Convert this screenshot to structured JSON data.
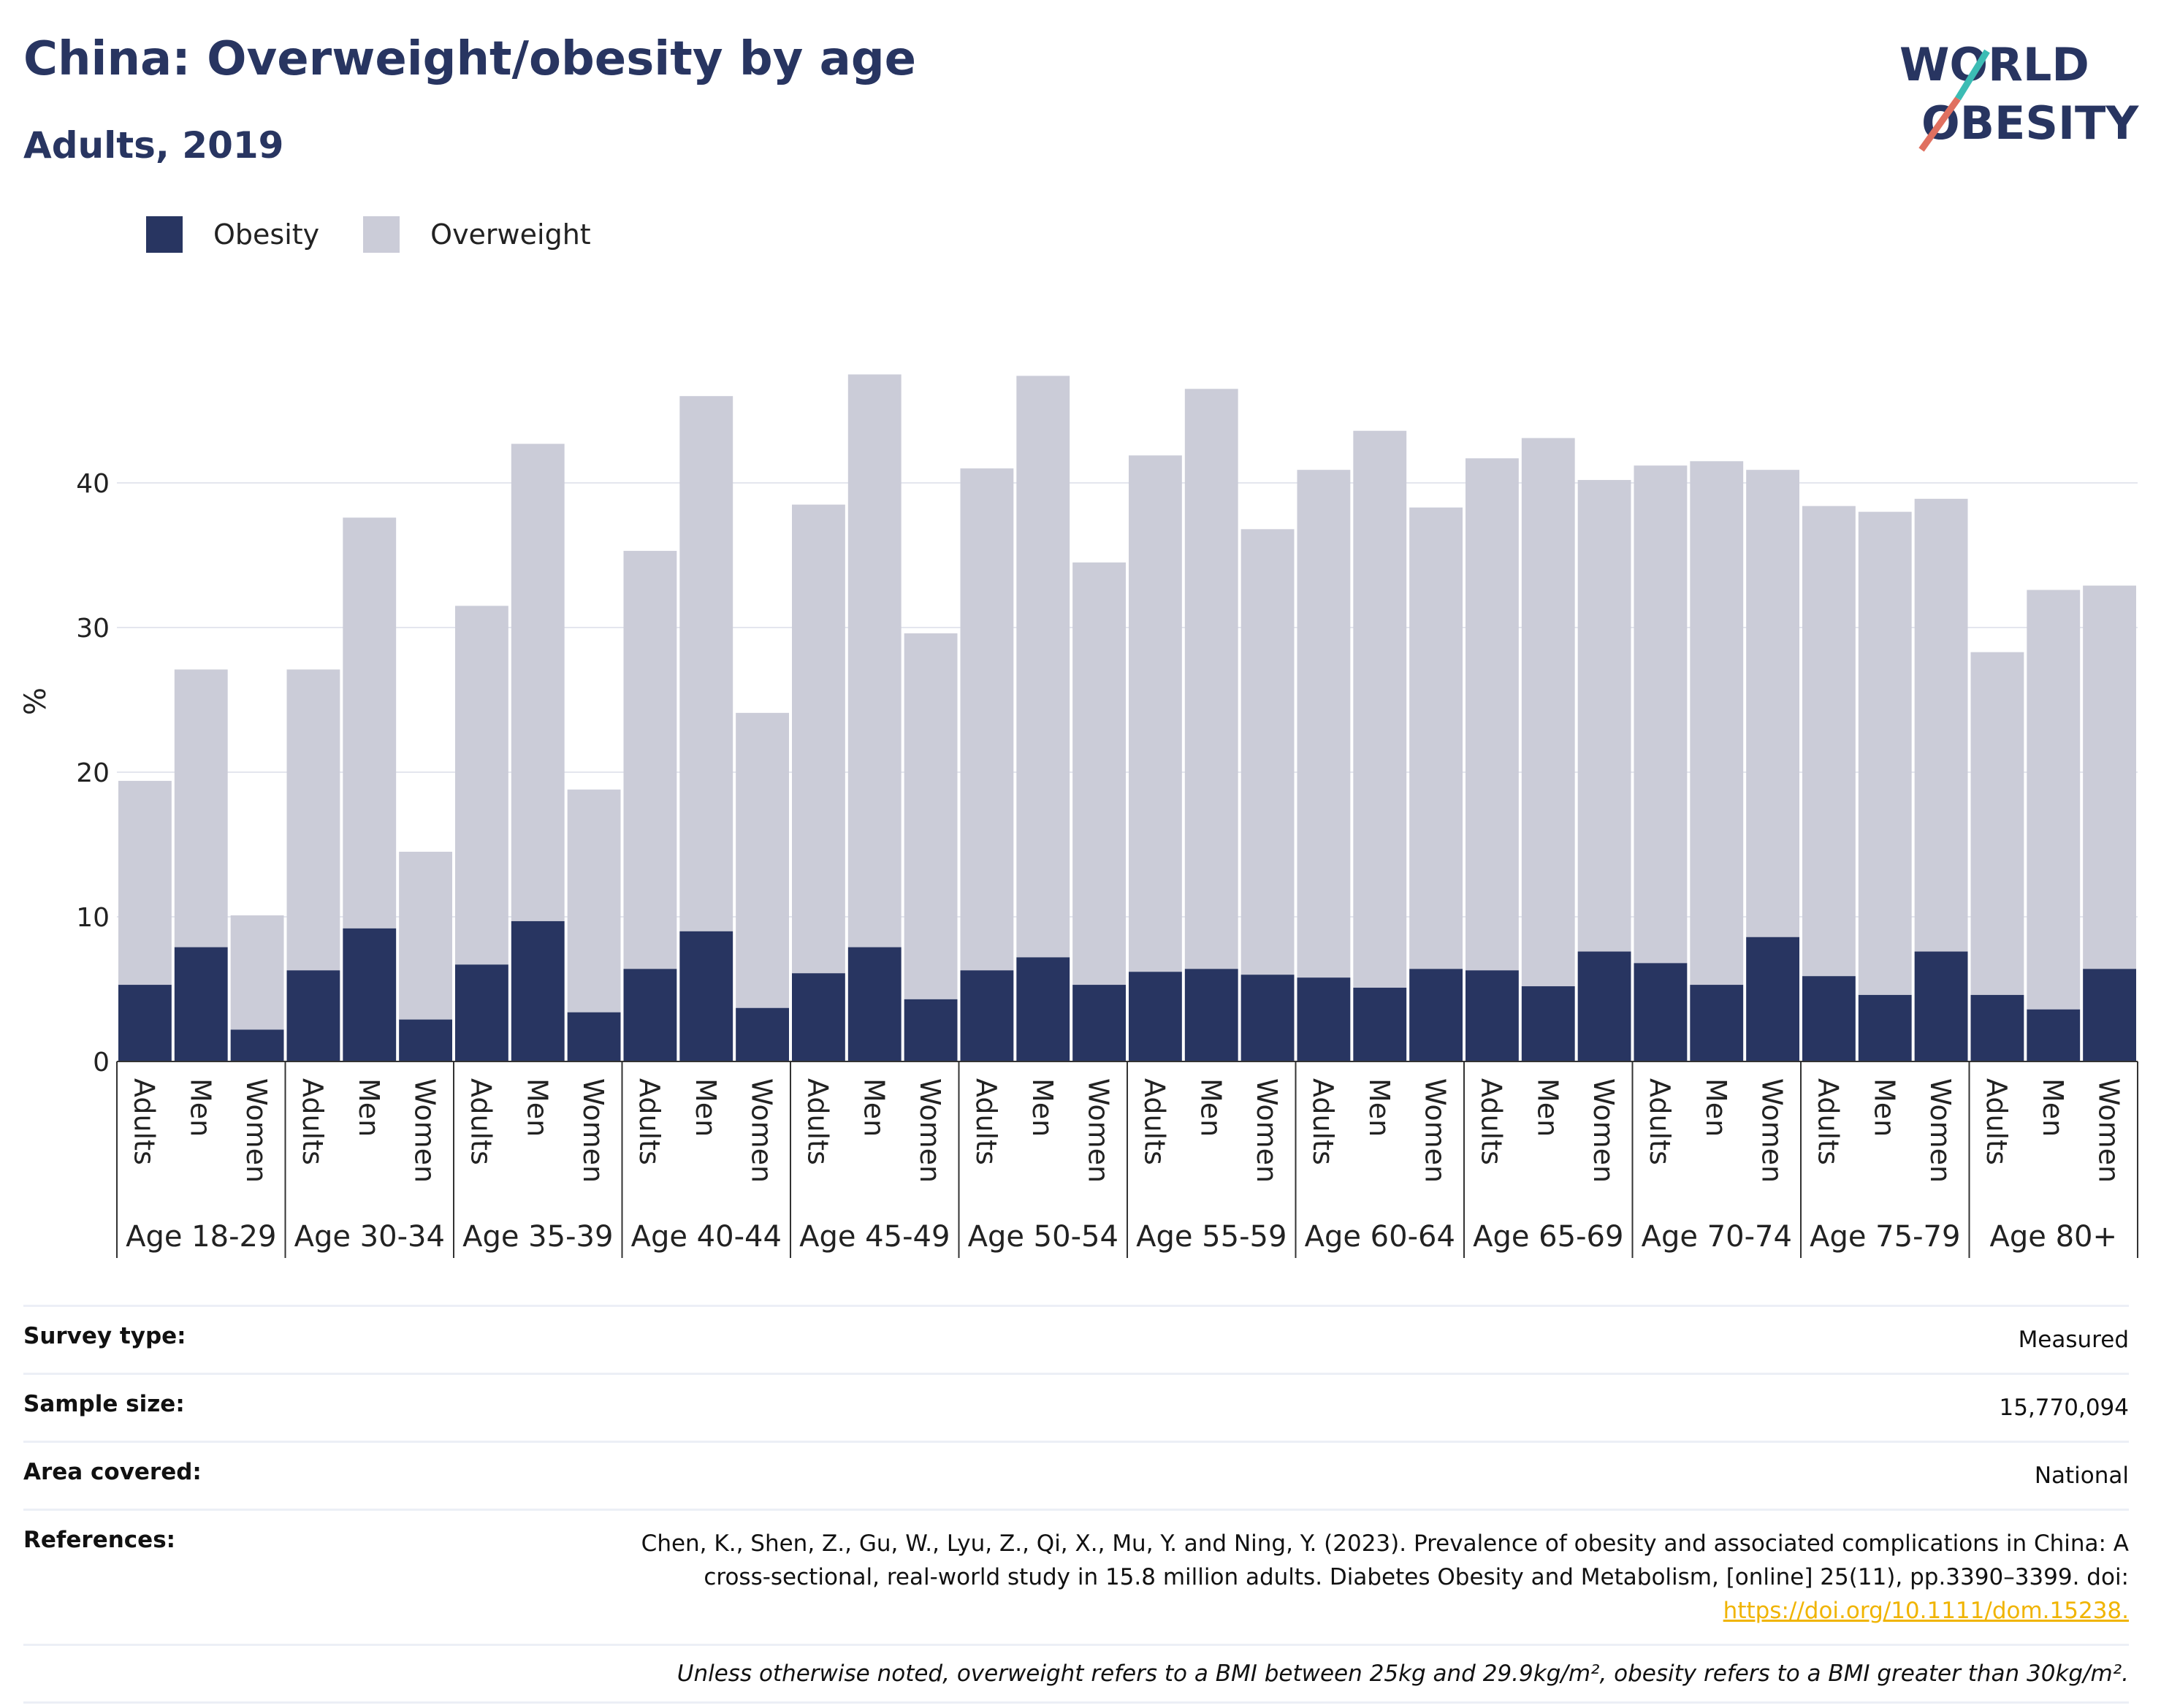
{
  "title": "China: Overweight/obesity by age",
  "subtitle": "Adults, 2019",
  "logo": {
    "line1": "WORLD",
    "line2": "OBESITY"
  },
  "legend": [
    {
      "label": "Obesity",
      "color": "#283561"
    },
    {
      "label": "Overweight",
      "color": "#cbccd8"
    }
  ],
  "chart_data": {
    "type": "bar",
    "stacked": true,
    "ylabel": "%",
    "ylim": [
      0,
      50
    ],
    "yticks": [
      0,
      10,
      20,
      30,
      40
    ],
    "grid": true,
    "legend_position": "top-left",
    "subgroups": [
      "Adults",
      "Men",
      "Women"
    ],
    "groups": [
      "Age 18-29",
      "Age 30-34",
      "Age 35-39",
      "Age 40-44",
      "Age 45-49",
      "Age 50-54",
      "Age 55-59",
      "Age 60-64",
      "Age 65-69",
      "Age 70-74",
      "Age 75-79",
      "Age 80+"
    ],
    "series": [
      {
        "name": "Obesity",
        "color": "#283561",
        "values": [
          5.3,
          7.9,
          2.2,
          6.3,
          9.2,
          2.9,
          6.7,
          9.7,
          3.4,
          6.4,
          9.0,
          3.7,
          6.1,
          7.9,
          4.3,
          6.3,
          7.2,
          5.3,
          6.2,
          6.4,
          6.0,
          5.8,
          5.1,
          6.4,
          6.3,
          5.2,
          7.6,
          6.8,
          5.3,
          8.6,
          5.9,
          4.6,
          7.6,
          4.6,
          3.6,
          6.4
        ]
      },
      {
        "name": "Overweight",
        "color": "#cbccd8",
        "values": [
          14.1,
          19.2,
          7.9,
          20.8,
          28.4,
          11.6,
          24.8,
          33.0,
          15.4,
          28.9,
          37.0,
          20.4,
          32.4,
          39.6,
          25.3,
          34.7,
          40.2,
          29.2,
          35.7,
          40.1,
          30.8,
          35.1,
          38.5,
          31.9,
          35.4,
          37.9,
          32.6,
          34.4,
          36.2,
          32.3,
          32.5,
          33.4,
          31.3,
          23.7,
          29.0,
          26.5
        ]
      }
    ]
  },
  "info": {
    "survey_type": {
      "label": "Survey type:",
      "value": "Measured"
    },
    "sample_size": {
      "label": "Sample size:",
      "value": "15,770,094"
    },
    "area": {
      "label": "Area covered:",
      "value": "National"
    },
    "references": {
      "label": "References:",
      "line1": "Chen, K., Shen, Z., Gu, W., Lyu, Z., Qi, X., Mu, Y. and Ning, Y. (2023). Prevalence of obesity and associated complications in China: A",
      "line2": "cross-sectional, real-world study in 15.8 million adults. Diabetes Obesity and Metabolism, [online] 25(11), pp.3390–3399. doi:",
      "link": "https://doi.org/10.1111/dom.15238."
    },
    "note": "Unless otherwise noted, overweight refers to a BMI between 25kg and 29.9kg/m², obesity refers to a BMI greater than 30kg/m²."
  }
}
